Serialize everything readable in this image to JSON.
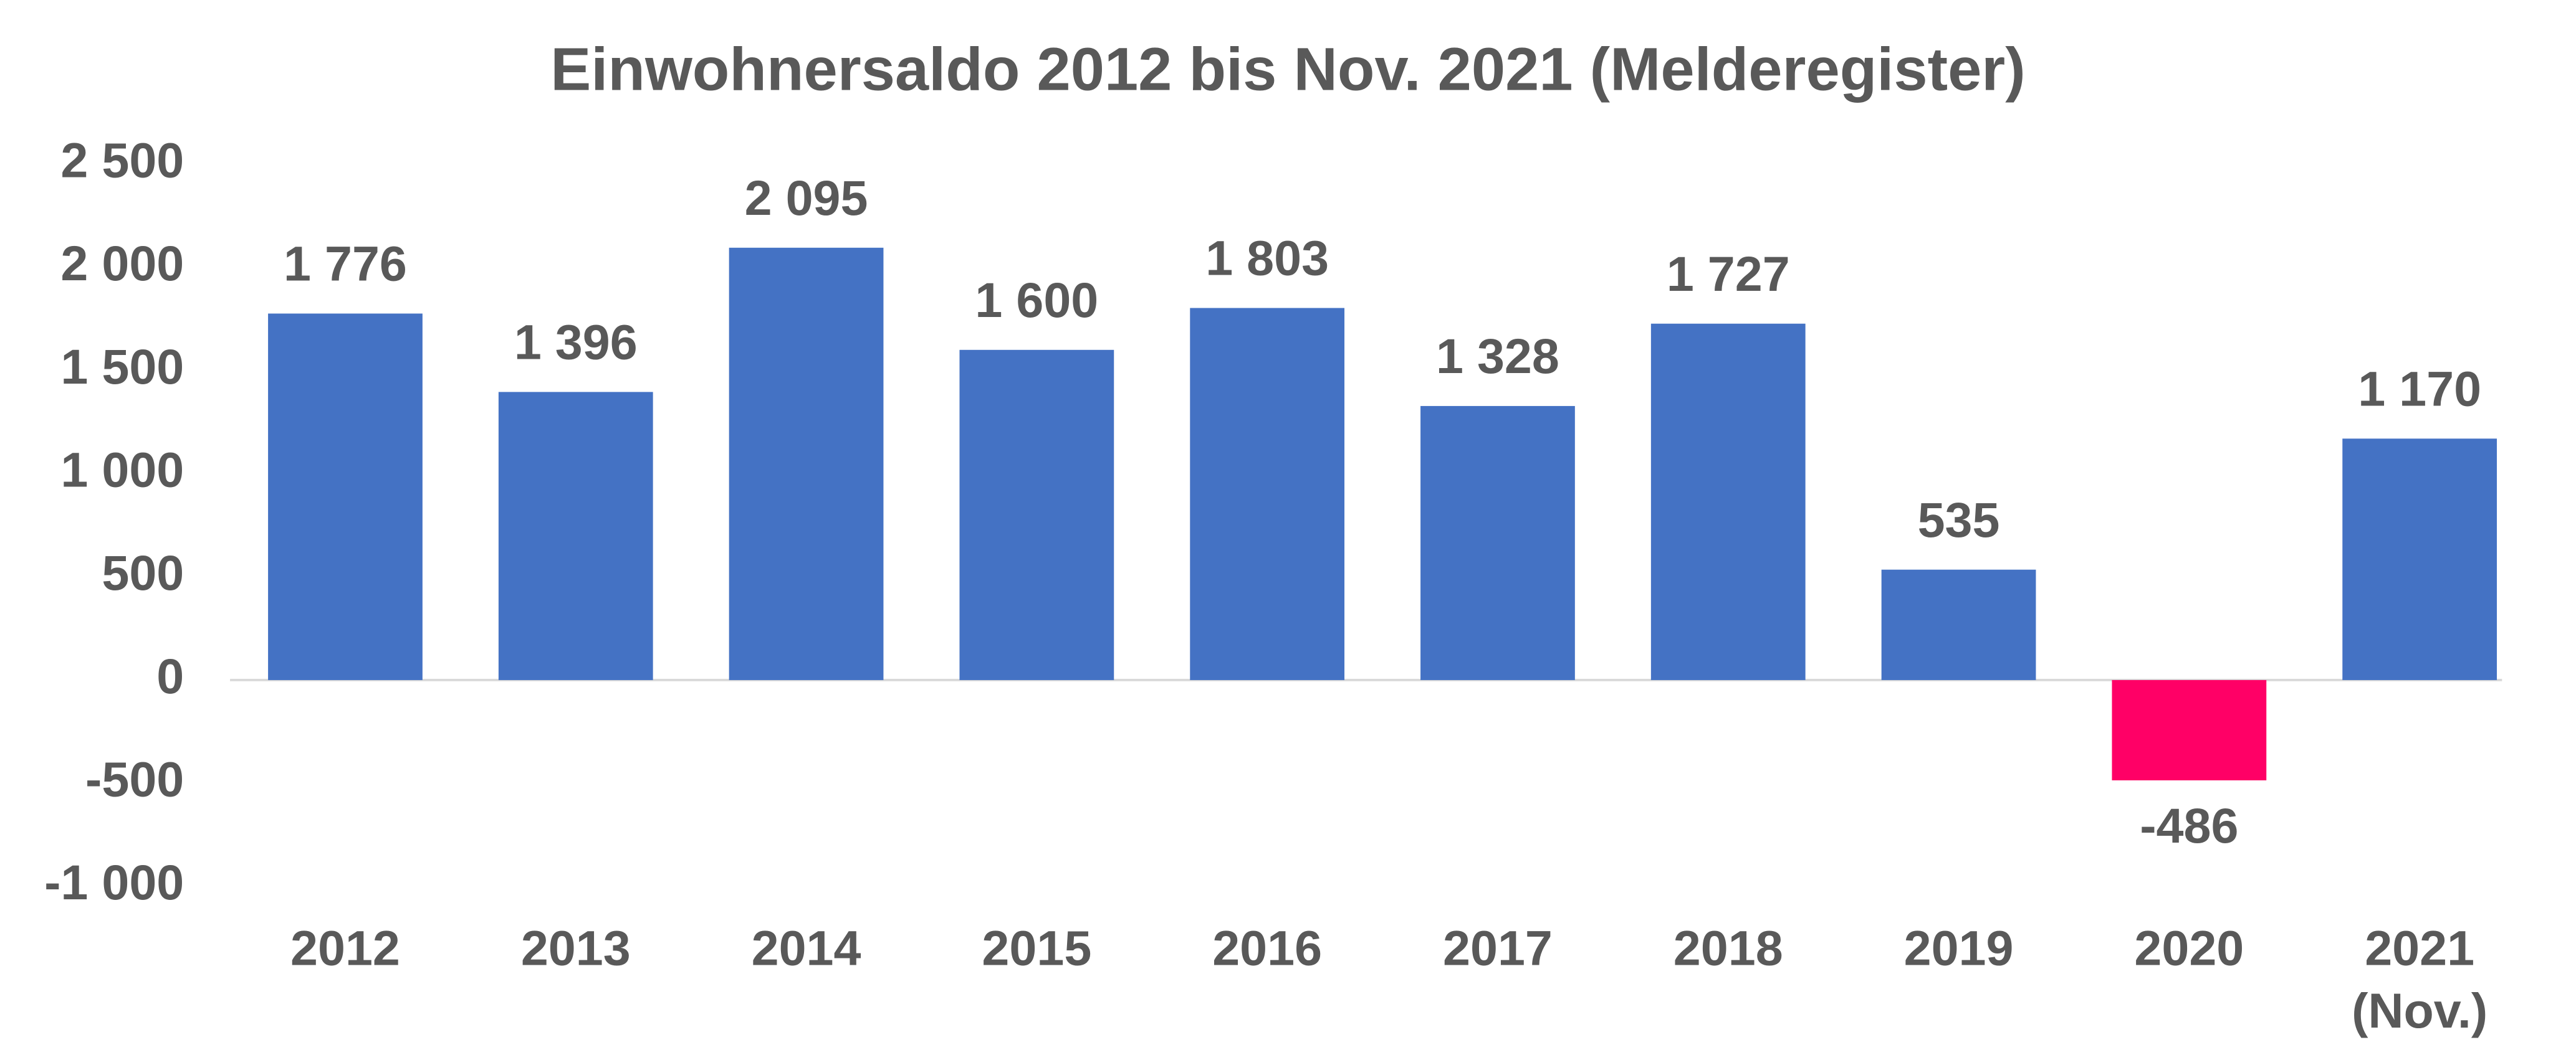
{
  "chart_data": {
    "type": "bar",
    "title": "Einwohnersaldo 2012 bis Nov. 2021 (Melderegister)",
    "categories": [
      "2012",
      "2013",
      "2014",
      "2015",
      "2016",
      "2017",
      "2018",
      "2019",
      "2020",
      "2021 (Nov.)"
    ],
    "values": [
      1776,
      1396,
      2095,
      1600,
      1803,
      1328,
      1727,
      535,
      -486,
      1170
    ],
    "value_labels": [
      "1 776",
      "1 396",
      "2 095",
      "1 600",
      "1 803",
      "1 328",
      "1 727",
      "535",
      "-486",
      "1 170"
    ],
    "colors": [
      "#4472c4",
      "#4472c4",
      "#4472c4",
      "#4472c4",
      "#4472c4",
      "#4472c4",
      "#4472c4",
      "#4472c4",
      "#ff0066",
      "#4472c4"
    ],
    "ylim": [
      -1000,
      2500
    ],
    "yticks": [
      {
        "value": -1000,
        "label": "-1 000"
      },
      -500,
      0,
      500,
      {
        "value": 1000,
        "label": "1 000"
      },
      {
        "value": 1500,
        "label": "1 500"
      },
      {
        "value": 2000,
        "label": "2 000"
      },
      {
        "value": 2500,
        "label": "2 500"
      }
    ],
    "grid": false
  }
}
